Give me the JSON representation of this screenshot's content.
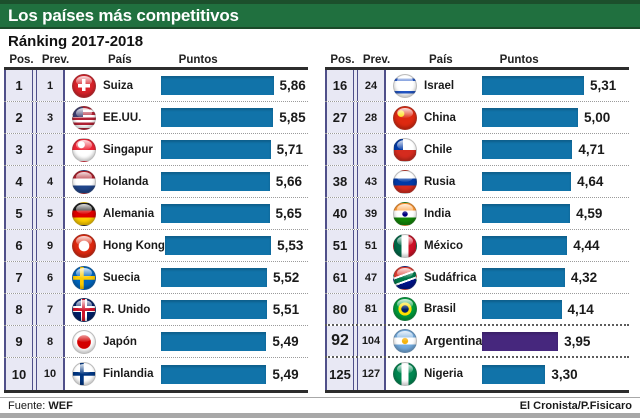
{
  "header": {
    "title": "Los países más competitivos",
    "subtitle": "Ránking 2017-2018"
  },
  "columns": {
    "pos": "Pos.",
    "prev": "Prev.",
    "country": "País",
    "points": "Puntos"
  },
  "tables": [
    {
      "rows": [
        {
          "pos": "1",
          "prev": "1",
          "country": "Suiza",
          "flag": "suiza",
          "points": "5,86",
          "value": 5.86,
          "highlight": false
        },
        {
          "pos": "2",
          "prev": "3",
          "country": "EE.UU.",
          "flag": "eeuu",
          "points": "5,85",
          "value": 5.85,
          "highlight": false
        },
        {
          "pos": "3",
          "prev": "2",
          "country": "Singapur",
          "flag": "singapur",
          "points": "5,71",
          "value": 5.71,
          "highlight": false
        },
        {
          "pos": "4",
          "prev": "4",
          "country": "Holanda",
          "flag": "holanda",
          "points": "5,66",
          "value": 5.66,
          "highlight": false
        },
        {
          "pos": "5",
          "prev": "5",
          "country": "Alemania",
          "flag": "alemania",
          "points": "5,65",
          "value": 5.65,
          "highlight": false
        },
        {
          "pos": "6",
          "prev": "9",
          "country": "Hong Kong",
          "flag": "hongkong",
          "points": "5,53",
          "value": 5.53,
          "highlight": false
        },
        {
          "pos": "7",
          "prev": "6",
          "country": "Suecia",
          "flag": "suecia",
          "points": "5,52",
          "value": 5.52,
          "highlight": false
        },
        {
          "pos": "8",
          "prev": "7",
          "country": "R. Unido",
          "flag": "reino-unido",
          "points": "5,51",
          "value": 5.51,
          "highlight": false
        },
        {
          "pos": "9",
          "prev": "8",
          "country": "Japón",
          "flag": "japon",
          "points": "5,49",
          "value": 5.49,
          "highlight": false
        },
        {
          "pos": "10",
          "prev": "10",
          "country": "Finlandia",
          "flag": "finlandia",
          "points": "5,49",
          "value": 5.49,
          "highlight": false
        }
      ]
    },
    {
      "rows": [
        {
          "pos": "16",
          "prev": "24",
          "country": "Israel",
          "flag": "israel",
          "points": "5,31",
          "value": 5.31,
          "highlight": false
        },
        {
          "pos": "27",
          "prev": "28",
          "country": "China",
          "flag": "china",
          "points": "5,00",
          "value": 5.0,
          "highlight": false
        },
        {
          "pos": "33",
          "prev": "33",
          "country": "Chile",
          "flag": "chile",
          "points": "4,71",
          "value": 4.71,
          "highlight": false
        },
        {
          "pos": "38",
          "prev": "43",
          "country": "Rusia",
          "flag": "rusia",
          "points": "4,64",
          "value": 4.64,
          "highlight": false
        },
        {
          "pos": "40",
          "prev": "39",
          "country": "India",
          "flag": "india",
          "points": "4,59",
          "value": 4.59,
          "highlight": false
        },
        {
          "pos": "51",
          "prev": "51",
          "country": "México",
          "flag": "mexico",
          "points": "4,44",
          "value": 4.44,
          "highlight": false
        },
        {
          "pos": "61",
          "prev": "47",
          "country": "Sudáfrica",
          "flag": "sudafrica",
          "points": "4,32",
          "value": 4.32,
          "highlight": false
        },
        {
          "pos": "80",
          "prev": "81",
          "country": "Brasil",
          "flag": "brasil",
          "points": "4,14",
          "value": 4.14,
          "highlight": false
        },
        {
          "pos": "92",
          "prev": "104",
          "country": "Argentina",
          "flag": "argentina",
          "points": "3,95",
          "value": 3.95,
          "highlight": true
        },
        {
          "pos": "125",
          "prev": "127",
          "country": "Nigeria",
          "flag": "nigeria",
          "points": "3,30",
          "value": 3.3,
          "highlight": false
        }
      ]
    }
  ],
  "footer": {
    "source_label": "Fuente:",
    "source": "WEF",
    "credit": "El Cronista/P.Fisicaro"
  },
  "colors": {
    "header_green": "#20703f",
    "header_green_dark": "#1c4f2c",
    "bar_blue": "#1173a9",
    "bar_highlight_purple": "#46277d",
    "pos_cell_bg": "#e8e8f4",
    "cell_border_navy": "#50508a"
  },
  "chart_data": {
    "type": "bar",
    "title": "Los países más competitivos",
    "subtitle": "Ránking 2017-2018",
    "xlabel": "Puntos",
    "ylabel": "País",
    "xlim": [
      0,
      6
    ],
    "legend": false,
    "grid": false,
    "categories": [
      "Suiza",
      "EE.UU.",
      "Singapur",
      "Holanda",
      "Alemania",
      "Hong Kong",
      "Suecia",
      "R. Unido",
      "Japón",
      "Finlandia",
      "Israel",
      "China",
      "Chile",
      "Rusia",
      "India",
      "México",
      "Sudáfrica",
      "Brasil",
      "Argentina",
      "Nigeria"
    ],
    "values": [
      5.86,
      5.85,
      5.71,
      5.66,
      5.65,
      5.53,
      5.52,
      5.51,
      5.49,
      5.49,
      5.31,
      5.0,
      4.71,
      4.64,
      4.59,
      4.44,
      4.32,
      4.14,
      3.95,
      3.3
    ],
    "positions": [
      1,
      2,
      3,
      4,
      5,
      6,
      7,
      8,
      9,
      10,
      16,
      27,
      33,
      38,
      40,
      51,
      61,
      80,
      92,
      125
    ],
    "previous_positions": [
      1,
      3,
      2,
      4,
      5,
      9,
      6,
      7,
      8,
      10,
      24,
      28,
      33,
      43,
      39,
      51,
      47,
      81,
      104,
      127
    ],
    "highlighted_category": "Argentina",
    "source": "WEF"
  }
}
